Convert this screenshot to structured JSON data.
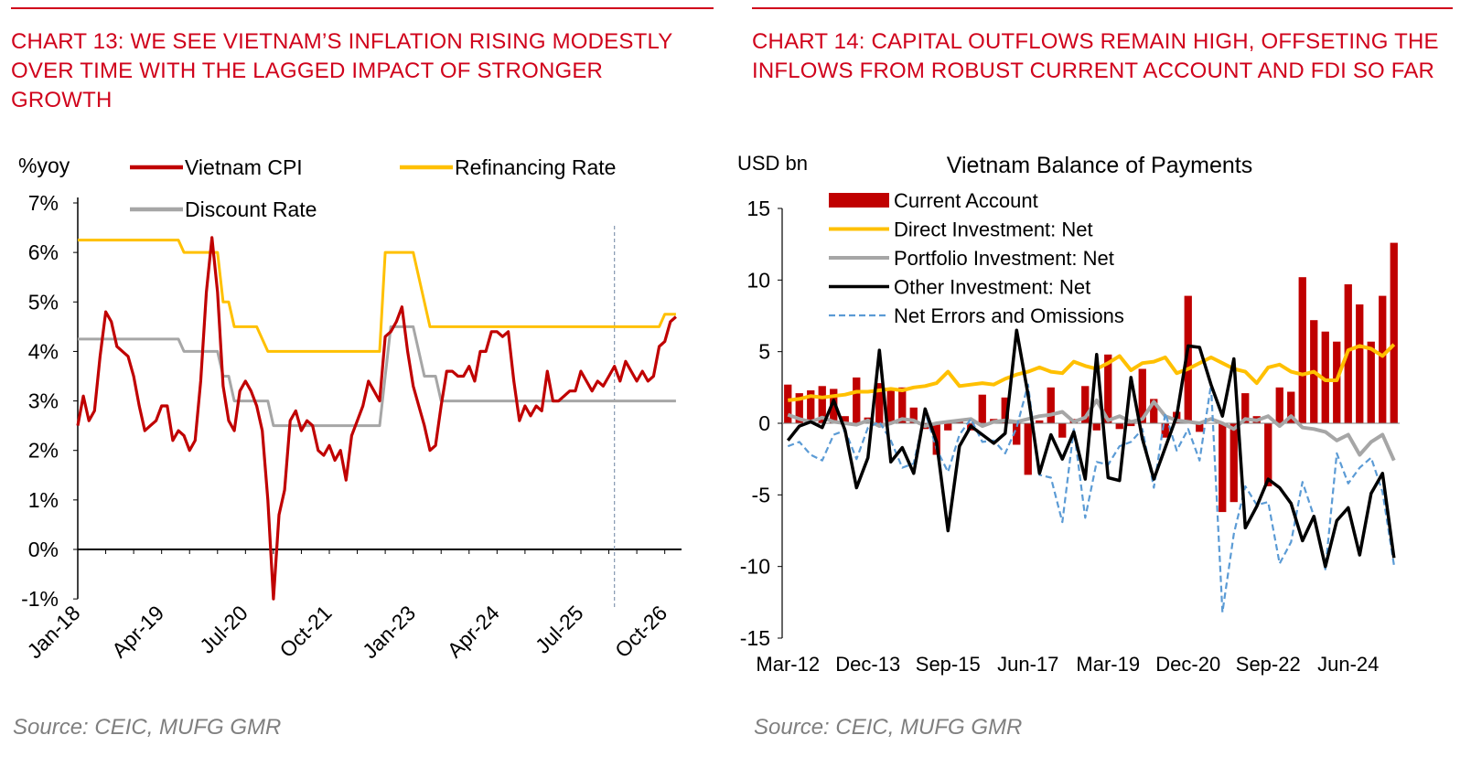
{
  "source_left": "Source: CEIC, MUFG GMR",
  "source_right": "Source: CEIC, MUFG GMR",
  "chart_data": [
    {
      "type": "line",
      "title": "CHART 13: WE SEE VIETNAM’S INFLATION RISING MODESTLY OVER TIME WITH THE LAGGED IMPACT OF STRONGER GROWTH",
      "ylabel": "%yoy",
      "xlabel": "",
      "ylim": [
        -1,
        7
      ],
      "yticks": [
        "7%",
        "6%",
        "5%",
        "4%",
        "3%",
        "2%",
        "1%",
        "0%",
        "-1%"
      ],
      "ytick_values": [
        7,
        6,
        5,
        4,
        3,
        2,
        1,
        0,
        -1
      ],
      "xticks": [
        "Jan-18",
        "Apr-19",
        "Jul-20",
        "Oct-21",
        "Jan-23",
        "Apr-24",
        "Jul-25",
        "Oct-26"
      ],
      "xtick_months": [
        0,
        15,
        30,
        45,
        60,
        75,
        90,
        105
      ],
      "xlim_months": [
        0,
        108
      ],
      "forecast_start_month": 96,
      "legend": [
        "Vietnam CPI",
        "Refinancing Rate",
        "Discount Rate"
      ],
      "colors": {
        "Vietnam CPI": "#c00000",
        "Refinancing Rate": "#ffc000",
        "Discount Rate": "#a6a6a6",
        "forecast_line": "#8497b0"
      },
      "series": [
        {
          "name": "Vietnam CPI",
          "x": [
            0,
            1,
            2,
            3,
            4,
            5,
            6,
            7,
            8,
            9,
            10,
            11,
            12,
            13,
            14,
            15,
            16,
            17,
            18,
            19,
            20,
            21,
            22,
            23,
            24,
            25,
            26,
            27,
            28,
            29,
            30,
            31,
            32,
            33,
            34,
            35,
            36,
            37,
            38,
            39,
            40,
            41,
            42,
            43,
            44,
            45,
            46,
            47,
            48,
            49,
            50,
            51,
            52,
            53,
            54,
            55,
            56,
            57,
            58,
            59,
            60,
            61,
            62,
            63,
            64,
            65,
            66,
            67,
            68,
            69,
            70,
            71,
            72,
            73,
            74,
            75,
            76,
            77,
            78,
            79,
            80,
            81,
            82,
            83,
            84,
            85,
            86,
            87,
            88,
            89,
            90,
            91,
            92,
            93,
            94,
            95,
            96,
            97,
            98,
            99,
            100,
            101,
            102,
            103,
            104,
            105,
            106,
            107
          ],
          "values": [
            2.5,
            3.1,
            2.6,
            2.8,
            3.9,
            4.8,
            4.6,
            4.1,
            4.0,
            3.9,
            3.5,
            2.9,
            2.4,
            2.5,
            2.6,
            2.9,
            2.9,
            2.2,
            2.4,
            2.3,
            2.0,
            2.2,
            3.4,
            5.2,
            6.3,
            5.2,
            3.3,
            2.6,
            2.4,
            3.2,
            3.4,
            3.2,
            2.9,
            2.4,
            1.0,
            -1.0,
            0.7,
            1.2,
            2.6,
            2.8,
            2.4,
            2.6,
            2.5,
            2.0,
            1.9,
            2.1,
            1.8,
            2.0,
            1.4,
            2.3,
            2.6,
            2.9,
            3.4,
            3.2,
            3.0,
            4.3,
            4.4,
            4.6,
            4.9,
            4.0,
            3.3,
            2.9,
            2.5,
            2.0,
            2.1,
            2.9,
            3.6,
            3.6,
            3.5,
            3.5,
            3.7,
            3.4,
            4.0,
            4.0,
            4.4,
            4.4,
            4.3,
            4.4,
            3.4,
            2.6,
            2.9,
            2.7,
            2.9,
            2.8,
            3.6,
            3.0,
            3.0,
            3.1,
            3.2,
            3.2,
            3.6,
            3.4,
            3.2,
            3.4,
            3.3,
            3.5,
            3.7,
            3.4,
            3.8,
            3.6,
            3.4,
            3.6,
            3.4,
            3.5,
            4.1,
            4.2,
            4.6,
            4.7
          ]
        },
        {
          "name": "Refinancing Rate",
          "x": [
            0,
            18,
            19,
            23,
            24,
            25,
            26,
            27,
            28,
            30,
            31,
            32,
            34,
            35,
            36,
            37,
            38,
            39,
            40,
            41,
            42,
            43,
            44,
            45,
            46,
            47,
            48,
            49,
            50,
            51,
            52,
            53,
            54,
            55,
            56,
            57,
            58,
            59,
            60,
            61,
            62,
            63,
            64,
            65,
            66,
            67,
            68,
            69,
            70,
            71,
            72,
            73,
            74,
            75,
            76,
            77,
            78,
            79,
            80,
            81,
            82,
            83,
            84,
            85,
            86,
            87,
            88,
            89,
            90,
            91,
            92,
            93,
            94,
            95,
            96,
            97,
            98,
            99,
            100,
            101,
            102,
            103,
            104,
            105,
            106,
            107
          ],
          "values": [
            6.25,
            6.25,
            6.0,
            6.0,
            6.0,
            6.0,
            5.0,
            5.0,
            4.5,
            4.5,
            4.5,
            4.5,
            4.0,
            4.0,
            4.0,
            4.0,
            4.0,
            4.0,
            4.0,
            4.0,
            4.0,
            4.0,
            4.0,
            4.0,
            4.0,
            4.0,
            4.0,
            4.0,
            4.0,
            4.0,
            4.0,
            4.0,
            4.0,
            6.0,
            6.0,
            6.0,
            6.0,
            6.0,
            6.0,
            5.5,
            5.0,
            4.5,
            4.5,
            4.5,
            4.5,
            4.5,
            4.5,
            4.5,
            4.5,
            4.5,
            4.5,
            4.5,
            4.5,
            4.5,
            4.5,
            4.5,
            4.5,
            4.5,
            4.5,
            4.5,
            4.5,
            4.5,
            4.5,
            4.5,
            4.5,
            4.5,
            4.5,
            4.5,
            4.5,
            4.5,
            4.5,
            4.5,
            4.5,
            4.5,
            4.5,
            4.5,
            4.5,
            4.5,
            4.5,
            4.5,
            4.5,
            4.5,
            4.5,
            4.75,
            4.75,
            4.75
          ]
        },
        {
          "name": "Discount Rate",
          "x": [
            0,
            18,
            19,
            23,
            24,
            25,
            26,
            27,
            28,
            29,
            30,
            34,
            35,
            36,
            50,
            51,
            52,
            53,
            54,
            55,
            56,
            57,
            58,
            59,
            60,
            61,
            62,
            63,
            64,
            65,
            66,
            67,
            68,
            70,
            107
          ],
          "values": [
            4.25,
            4.25,
            4.0,
            4.0,
            4.0,
            4.0,
            3.5,
            3.5,
            3.0,
            3.0,
            3.0,
            3.0,
            2.5,
            2.5,
            2.5,
            2.5,
            2.5,
            2.5,
            2.5,
            3.5,
            4.5,
            4.5,
            4.5,
            4.5,
            4.5,
            4.0,
            3.5,
            3.5,
            3.5,
            3.0,
            3.0,
            3.0,
            3.0,
            3.0,
            3.0
          ]
        }
      ]
    },
    {
      "type": "bar",
      "title": "CHART 14: CAPITAL OUTFLOWS REMAIN HIGH, OFFSETING THE INFLOWS FROM ROBUST CURRENT ACCOUNT AND FDI SO FAR",
      "subtitle": "Vietnam Balance of Payments",
      "ylabel": "USD bn",
      "xlabel": "",
      "ylim": [
        -15,
        15
      ],
      "yticks": [
        "15",
        "10",
        "5",
        "0",
        "-5",
        "-10",
        "-15"
      ],
      "ytick_values": [
        15,
        10,
        5,
        0,
        -5,
        -10,
        -15
      ],
      "categories": [
        "Mar-12",
        "Jun-12",
        "Sep-12",
        "Dec-12",
        "Mar-13",
        "Jun-13",
        "Sep-13",
        "Dec-13",
        "Mar-14",
        "Jun-14",
        "Sep-14",
        "Dec-14",
        "Mar-15",
        "Jun-15",
        "Sep-15",
        "Dec-15",
        "Mar-16",
        "Jun-16",
        "Sep-16",
        "Dec-16",
        "Mar-17",
        "Jun-17",
        "Sep-17",
        "Dec-17",
        "Mar-18",
        "Jun-18",
        "Sep-18",
        "Dec-18",
        "Mar-19",
        "Jun-19",
        "Sep-19",
        "Dec-19",
        "Mar-20",
        "Jun-20",
        "Sep-20",
        "Dec-20",
        "Mar-21",
        "Jun-21",
        "Sep-21",
        "Dec-21",
        "Mar-22",
        "Jun-22",
        "Sep-22",
        "Dec-22",
        "Mar-23",
        "Jun-23",
        "Sep-23",
        "Dec-23",
        "Mar-24",
        "Jun-24",
        "Sep-24",
        "Dec-24",
        "Mar-25",
        "Jun-25"
      ],
      "xtick_labels": [
        "Mar-12",
        "Dec-13",
        "Sep-15",
        "Jun-17",
        "Mar-19",
        "Dec-20",
        "Sep-22",
        "Jun-24"
      ],
      "xtick_indices": [
        0,
        7,
        14,
        21,
        28,
        35,
        42,
        49
      ],
      "legend": [
        "Current Account",
        "Direct Investment: Net",
        "Portfolio Investment: Net",
        "Other Investment: Net",
        "Net Errors and Omissions"
      ],
      "colors": {
        "Current Account": "#c00000",
        "Direct Investment: Net": "#ffc000",
        "Portfolio Investment: Net": "#a6a6a6",
        "Other Investment: Net": "#000000",
        "Net Errors and Omissions": "#5b9bd5"
      },
      "series": [
        {
          "name": "Current Account",
          "kind": "bar",
          "values": [
            2.7,
            2.1,
            2.3,
            2.6,
            2.4,
            0.5,
            3.2,
            0.4,
            2.8,
            2.4,
            2.5,
            1.1,
            -0.4,
            -2.2,
            -0.5,
            0.1,
            -0.5,
            2.0,
            0.3,
            1.8,
            -1.5,
            -3.6,
            0.2,
            2.5,
            -1.0,
            0.3,
            2.6,
            -0.5,
            4.8,
            -0.4,
            -0.2,
            3.8,
            1.7,
            -1.0,
            0.8,
            8.9,
            -0.6,
            0.0,
            -6.2,
            -5.5,
            2.1,
            0.5,
            -4.4,
            2.5,
            2.2,
            10.2,
            7.2,
            6.4,
            5.7,
            9.7,
            8.3,
            5.7,
            8.9,
            12.6
          ]
        },
        {
          "name": "Direct Investment: Net",
          "kind": "line",
          "values": [
            1.6,
            1.7,
            1.9,
            1.8,
            1.9,
            2.0,
            2.2,
            2.2,
            2.3,
            2.4,
            2.3,
            2.5,
            2.6,
            2.8,
            3.6,
            2.6,
            2.7,
            2.8,
            2.7,
            3.1,
            3.4,
            3.6,
            3.9,
            3.6,
            3.5,
            4.3,
            4.0,
            3.8,
            4.2,
            4.7,
            3.7,
            4.2,
            4.3,
            4.6,
            3.5,
            3.8,
            4.2,
            4.6,
            4.2,
            3.8,
            3.6,
            2.8,
            3.9,
            4.1,
            3.6,
            3.4,
            3.6,
            3.0,
            3.0,
            5.1,
            5.4,
            5.2,
            4.7,
            5.5
          ]
        },
        {
          "name": "Portfolio Investment: Net",
          "kind": "line",
          "values": [
            0.6,
            0.3,
            0.1,
            0.4,
            0.1,
            0.0,
            -0.1,
            0.2,
            -0.2,
            0.0,
            0.3,
            0.2,
            -0.2,
            0.0,
            0.1,
            0.2,
            0.3,
            -0.2,
            0.1,
            0.2,
            0.1,
            0.3,
            0.5,
            0.6,
            0.8,
            0.1,
            0.4,
            1.6,
            0.2,
            0.5,
            0.1,
            0.3,
            1.5,
            0.5,
            0.2,
            0.1,
            0.0,
            0.3,
            0.0,
            -0.4,
            0.3,
            0.2,
            0.5,
            -0.2,
            0.5,
            -0.3,
            -0.4,
            -0.6,
            -1.2,
            -0.8,
            -2.2,
            -1.3,
            -0.8,
            -2.6
          ]
        },
        {
          "name": "Other Investment: Net",
          "kind": "line",
          "values": [
            -1.2,
            -0.2,
            0.1,
            -0.3,
            1.6,
            -0.5,
            -4.5,
            -2.4,
            5.1,
            -2.7,
            -1.7,
            -3.5,
            1.0,
            -1.3,
            -7.5,
            -1.6,
            -0.2,
            -0.8,
            -1.4,
            -0.7,
            6.5,
            2.0,
            -3.5,
            -0.8,
            -2.5,
            -0.6,
            -3.9,
            4.8,
            -3.8,
            -4.0,
            3.2,
            -1.1,
            -3.9,
            -1.7,
            0.5,
            5.4,
            5.3,
            2.7,
            0.5,
            4.5,
            -7.3,
            -5.8,
            -3.9,
            -4.5,
            -5.6,
            -8.2,
            -6.5,
            -10.0,
            -6.8,
            -5.9,
            -9.2,
            -4.9,
            -3.5,
            -9.4
          ]
        },
        {
          "name": "Net Errors and Omissions",
          "kind": "dashed",
          "values": [
            -1.6,
            -1.3,
            -2.2,
            -2.6,
            -0.8,
            -0.5,
            -2.5,
            -0.3,
            0.1,
            -1.2,
            -3.1,
            -2.8,
            0.8,
            -1.8,
            -3.4,
            -0.8,
            0.3,
            -1.3,
            -1.2,
            -2.1,
            -0.3,
            2.7,
            -3.6,
            -3.8,
            -6.9,
            -0.4,
            -6.6,
            -2.7,
            -2.9,
            -1.6,
            -1.3,
            -0.4,
            -4.5,
            0.7,
            -1.9,
            -0.4,
            -2.6,
            2.7,
            -13.2,
            -7.7,
            -4.4,
            -5.7,
            -5.5,
            -9.8,
            -8.3,
            -4.1,
            -6.5,
            -10.2,
            -2.1,
            -4.2,
            -3.1,
            -2.4,
            -4.8,
            -9.9
          ]
        }
      ]
    }
  ]
}
